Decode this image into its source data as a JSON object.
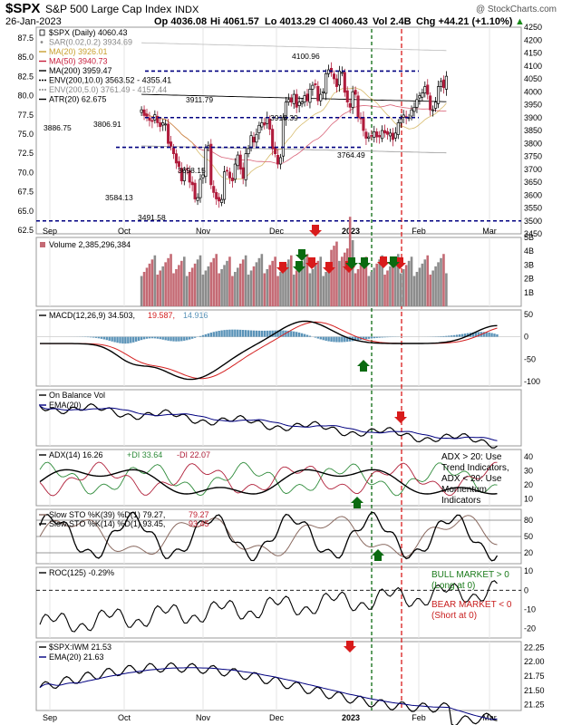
{
  "header": {
    "symbol": "$SPX",
    "name": "S&P 500 Large Cap Index",
    "exchange": "INDX",
    "watermark": "@ StockCharts.com",
    "date": "26-Jan-2023",
    "open": "Op 4036.08",
    "high": "Hi 4061.57",
    "low": "Lo 4013.29",
    "close": "Cl 4060.43",
    "vol": "Vol 2.4B",
    "chg": "Chg +44.21 (+1.10%)",
    "chg_arrow": "▲"
  },
  "colors": {
    "up": "#000000",
    "down": "#b01c3c",
    "vol_up": "#8c8c8c",
    "vol_down": "#c46a74",
    "navy": "#000080",
    "green_marker": "#0a6a10",
    "red_marker": "#d81b1b",
    "ma20": "#c8a030",
    "ma50": "#c81e3c",
    "ma200": "#000000",
    "env": "#777777",
    "macd_line": "#000000",
    "signal": "#d42020",
    "histogram": "#5a93b8",
    "pos_di": "#2e8b3a",
    "neg_di": "#b0203a",
    "sto_k": "#000000",
    "sto_d": "#c02030",
    "sto39": "#8a6a60",
    "price_axis_line": "#555555"
  },
  "x_axis": {
    "months": [
      "Sep",
      "Oct",
      "Nov",
      "Dec",
      "2023",
      "Feb",
      "Mar"
    ]
  },
  "panels": {
    "price": {
      "legend": [
        {
          "text": "$SPX (Daily) 4060.43",
          "color": "#000000"
        },
        {
          "text": "SAR(0.02,0.2) 3934.69",
          "color": "#888888"
        },
        {
          "text": "MA(20) 3926.01",
          "color": "#c8a030"
        },
        {
          "text": "MA(50) 3940.73",
          "color": "#c81e3c"
        },
        {
          "text": "MA(200) 3959.47",
          "color": "#000000"
        },
        {
          "text": "ENV(200,10.0) 3563.52 - 4355.41",
          "color": "#000000"
        },
        {
          "text": "ENV(200,5.0) 3761.49 - 4157.44",
          "color": "#888888"
        },
        {
          "text": "ATR(20) 62.675",
          "color": "#000000"
        }
      ],
      "left_ticks": [
        "87.5",
        "85.0",
        "82.5",
        "80.0",
        "77.5",
        "75.0",
        "72.5",
        "70.0",
        "67.5",
        "65.0",
        "62.5"
      ],
      "right_ticks": [
        "4250",
        "4200",
        "4150",
        "4100",
        "4050",
        "4000",
        "3950",
        "3900",
        "3850",
        "3800",
        "3750",
        "3700",
        "3650",
        "3600",
        "3550",
        "3500",
        "3450"
      ],
      "annotations": [
        "4100.96",
        "3911.79",
        "3918.39",
        "3886.75",
        "3806.91",
        "3764.49",
        "3698.15",
        "3584.13",
        "3491.58"
      ]
    },
    "volume": {
      "legend": "Volume 2,385,296,384",
      "right_ticks": [
        "5B",
        "4B",
        "3B",
        "2B",
        "1B"
      ]
    },
    "macd": {
      "legend_main": "MACD(12,26,9) 34.503,",
      "legend_signal": "19.587,",
      "legend_hist": "14.916",
      "right_ticks": [
        "50",
        "0",
        "-50",
        "-100"
      ]
    },
    "obv": {
      "legend_main": "On Balance Vol",
      "legend_ema": "EMA(20)"
    },
    "adx": {
      "legend_main": "ADX(14) 16.26",
      "legend_pdi": "+DI 33.64",
      "legend_ndi": "-DI 22.07",
      "right_ticks": [
        "40",
        "30",
        "20",
        "10"
      ],
      "note": [
        "ADX > 20: Use",
        "Trend Indicators,",
        "ADX < 20: Use",
        "Momentum",
        "Indicators"
      ]
    },
    "sto": {
      "legend1_main": "Slow STO %K(39) %D(1) 79.27,",
      "legend1_val": "79.27",
      "legend2_main": "Slow STO %K(14) %D(1) 93.45,",
      "legend2_val": "93.45",
      "right_ticks": [
        "80",
        "50",
        "20"
      ]
    },
    "roc": {
      "legend": "ROC(125) -0.29%",
      "right_ticks": [
        "10",
        "0",
        "-10",
        "-20"
      ],
      "bull_note": [
        "BULL MARKET > 0",
        "(Long at 0)"
      ],
      "bear_note": [
        "BEAR MARKET < 0",
        "(Short at 0)"
      ]
    },
    "ratio": {
      "legend_main": "$SPX:IWM 21.53",
      "legend_ema": "EMA(20) 21.63",
      "right_ticks": [
        "22.25",
        "22.00",
        "21.75",
        "21.50",
        "21.25"
      ]
    }
  },
  "chart_data": {
    "type": "candlestick",
    "symbol": "$SPX",
    "title": "S&P 500 Large Cap Index",
    "date_range": [
      "Sep 2022",
      "26-Jan-2023"
    ],
    "price_ylim": [
      3450,
      4250
    ],
    "last_bar": {
      "date": "26-Jan-2023",
      "open": 4036.08,
      "high": 4061.57,
      "low": 4013.29,
      "close": 4060.43,
      "volume": "2.4B",
      "change": 44.21,
      "change_pct": 1.1
    },
    "horizontal_levels": [
      4080,
      3900,
      3785,
      3500
    ],
    "annotated_prices": [
      {
        "label": "4100.96",
        "value": 4100.96
      },
      {
        "label": "3911.79",
        "value": 3911.79
      },
      {
        "label": "3918.39",
        "value": 3918.39
      },
      {
        "label": "3886.75",
        "value": 3886.75
      },
      {
        "label": "3806.91",
        "value": 3806.91
      },
      {
        "label": "3764.49",
        "value": 3764.49
      },
      {
        "label": "3698.15",
        "value": 3698.15
      },
      {
        "label": "3584.13",
        "value": 3584.13
      },
      {
        "label": "3491.58",
        "value": 3491.58
      }
    ],
    "closes": [
      3930,
      3908,
      3905,
      3889,
      3885,
      3911,
      3880,
      3865,
      3880,
      3875,
      3800,
      3790,
      3760,
      3724,
      3710,
      3655,
      3696,
      3700,
      3650,
      3640,
      3585,
      3590,
      3661,
      3678,
      3783,
      3791,
      3640,
      3610,
      3585,
      3577,
      3583,
      3690,
      3695,
      3666,
      3655,
      3720,
      3755,
      3700,
      3665,
      3760,
      3780,
      3830,
      3805,
      3835,
      3870,
      3880,
      3871,
      3900,
      3855,
      3780,
      3760,
      3720,
      3745,
      3900,
      3960,
      3970,
      3960,
      3990,
      3940,
      3960,
      3960,
      3985,
      3965,
      4010,
      4025,
      4027,
      3965,
      3990,
      4000,
      4070,
      4085,
      4075,
      4050,
      4020,
      4080,
      4075,
      3998,
      3960,
      3940,
      4000,
      3990,
      3900,
      3895,
      3850,
      3820,
      3825,
      3830,
      3845,
      3825,
      3825,
      3850,
      3840,
      3835,
      3840,
      3815,
      3840,
      3880,
      3895,
      3910,
      3900,
      3900,
      3930,
      3940,
      3970,
      3985,
      3995,
      4020,
      3990,
      3930,
      3930,
      3960,
      4020,
      4040,
      4016,
      4060
    ],
    "volume_ylim": [
      0,
      5
    ],
    "volume_unit": "B",
    "volume_last": "2,385,296,384",
    "macd": {
      "params": "12,26,9",
      "macd": 34.503,
      "signal": 19.587,
      "histogram": 14.916,
      "ylim": [
        -110,
        60
      ]
    },
    "obv": {
      "params": "EMA(20)"
    },
    "adx": {
      "adx": 16.26,
      "plus_di": 33.64,
      "minus_di": 22.07,
      "ylim": [
        5,
        45
      ]
    },
    "slow_sto_39": {
      "k": 79.27,
      "d": 79.27,
      "ylim": [
        0,
        100
      ]
    },
    "slow_sto_14": {
      "k": 93.45,
      "d": 93.45
    },
    "roc_125": {
      "value": -0.29,
      "unit": "%",
      "ylim": [
        -25,
        12
      ]
    },
    "spx_iwm": {
      "ratio": 21.53,
      "ema20": 21.63,
      "ylim": [
        21.15,
        22.35
      ]
    },
    "signals": {
      "volume_red_arrows": 6,
      "volume_green_arrows": 4
    }
  }
}
